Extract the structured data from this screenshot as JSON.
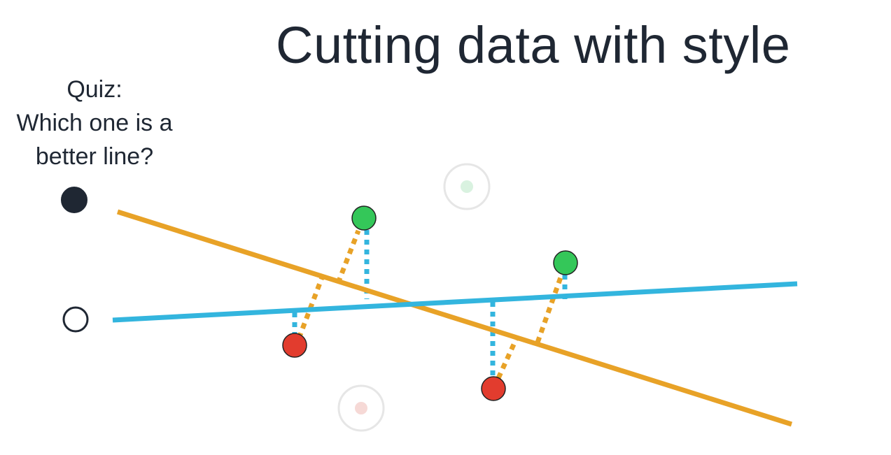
{
  "title": "Cutting data with style",
  "quiz": {
    "line1": "Quiz:",
    "line2": "Which one is a",
    "line3": "better line?"
  },
  "colors": {
    "orange_line": "#e8a227",
    "blue_line": "#33b5de",
    "green_point": "#34c759",
    "red_point": "#e23c2e",
    "option_selected": "#1f2733",
    "faded_point_ring": "#e6e6e6"
  },
  "legend_options": [
    {
      "name": "option-orange-line",
      "state": "selected"
    },
    {
      "name": "option-blue-line",
      "state": "unselected"
    }
  ]
}
